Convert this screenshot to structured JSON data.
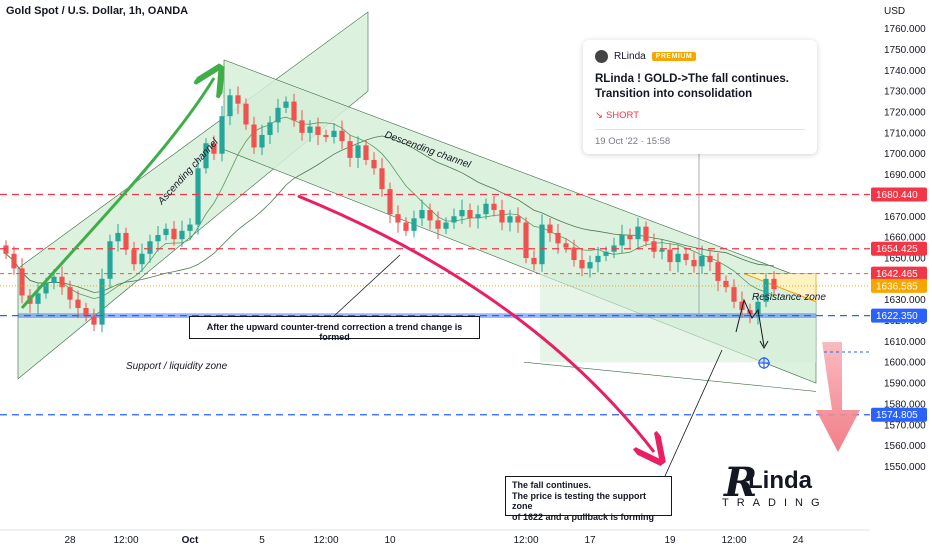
{
  "title": "Gold Spot / U.S. Dollar, 1h, OANDA",
  "currency": "USD",
  "chart_data": {
    "type": "candlestick",
    "ylim": [
      1546,
      1768
    ],
    "y_ticks": [
      1550,
      1560,
      1570,
      1580,
      1590,
      1600,
      1610,
      1620,
      1630,
      1640,
      1650,
      1660,
      1670,
      1680,
      1690,
      1700,
      1710,
      1720,
      1730,
      1740,
      1750,
      1760
    ],
    "x_ticks": [
      "28",
      "12:00",
      "Oct",
      "5",
      "12:00",
      "10",
      "12:00",
      "17",
      "19",
      "12:00",
      "24"
    ],
    "x_tick_index": [
      8,
      15,
      23,
      32,
      40,
      48,
      65,
      73,
      83,
      91,
      99
    ],
    "price_levels": [
      {
        "label": "1680.440",
        "value": 1680.44,
        "color": "#f23645",
        "style": "dashed"
      },
      {
        "label": "1654.425",
        "value": 1654.425,
        "color": "#f23645",
        "style": "dashed"
      },
      {
        "label": "1642.465",
        "value": 1642.465,
        "color": "#f23645",
        "style": "dashed-thin"
      },
      {
        "label": "1636.585",
        "value": 1636.585,
        "color": "#f7a600",
        "style": "dotted"
      },
      {
        "label": "1622.350",
        "value": 1622.35,
        "color": "#2962ff",
        "style": "dashed"
      },
      {
        "label": "1574.805",
        "value": 1574.805,
        "color": "#2962ff",
        "style": "dashed"
      }
    ],
    "closes": [
      1652,
      1645,
      1632,
      1628,
      1633,
      1638,
      1641,
      1636,
      1630,
      1626,
      1622,
      1618,
      1640,
      1658,
      1662,
      1654,
      1647,
      1652,
      1658,
      1661,
      1664,
      1659,
      1663,
      1666,
      1693,
      1705,
      1700,
      1718,
      1728,
      1724,
      1714,
      1703,
      1709,
      1715,
      1722,
      1725,
      1716,
      1710,
      1713,
      1709,
      1708,
      1711,
      1706,
      1698,
      1704,
      1697,
      1693,
      1683,
      1671,
      1667,
      1663,
      1669,
      1673,
      1668,
      1664,
      1667,
      1670,
      1673,
      1669,
      1671,
      1676,
      1673,
      1667,
      1670,
      1667,
      1650,
      1647,
      1666,
      1662,
      1657,
      1655,
      1649,
      1645,
      1648,
      1651,
      1653,
      1656,
      1661,
      1659,
      1665,
      1658,
      1653,
      1654,
      1648,
      1652,
      1649,
      1646,
      1651,
      1648,
      1639,
      1636,
      1629,
      1625,
      1623,
      1629,
      1640,
      1635
    ]
  },
  "annotations": {
    "ascending_channel": "Ascending channel",
    "descending_channel": "Descending channel",
    "support_zone": "Support / liquidity zone",
    "resistance_zone": "Resistance zone",
    "note1": "After the upward counter-trend correction a trend change is formed",
    "note2_line1": "The fall continues.",
    "note2_line2": "The price is testing the support zone",
    "note2_line3": "of 1622 and a pullback is forming"
  },
  "idea_card": {
    "author": "RLinda",
    "badge": "PREMIUM",
    "headline": "RLinda ! GOLD->The fall continues. Transition into consolidation",
    "direction": "SHORT",
    "date": "19 Oct '22 · 15:58"
  },
  "logo": {
    "letter": "R",
    "name": "Linda",
    "tagline": "TRADING"
  },
  "colors": {
    "up": "#26a69a",
    "down": "#ef5350",
    "channel_fill": "#d6efd8",
    "green_arrow": "#3fae49",
    "red_arrow": "#e91e63"
  }
}
